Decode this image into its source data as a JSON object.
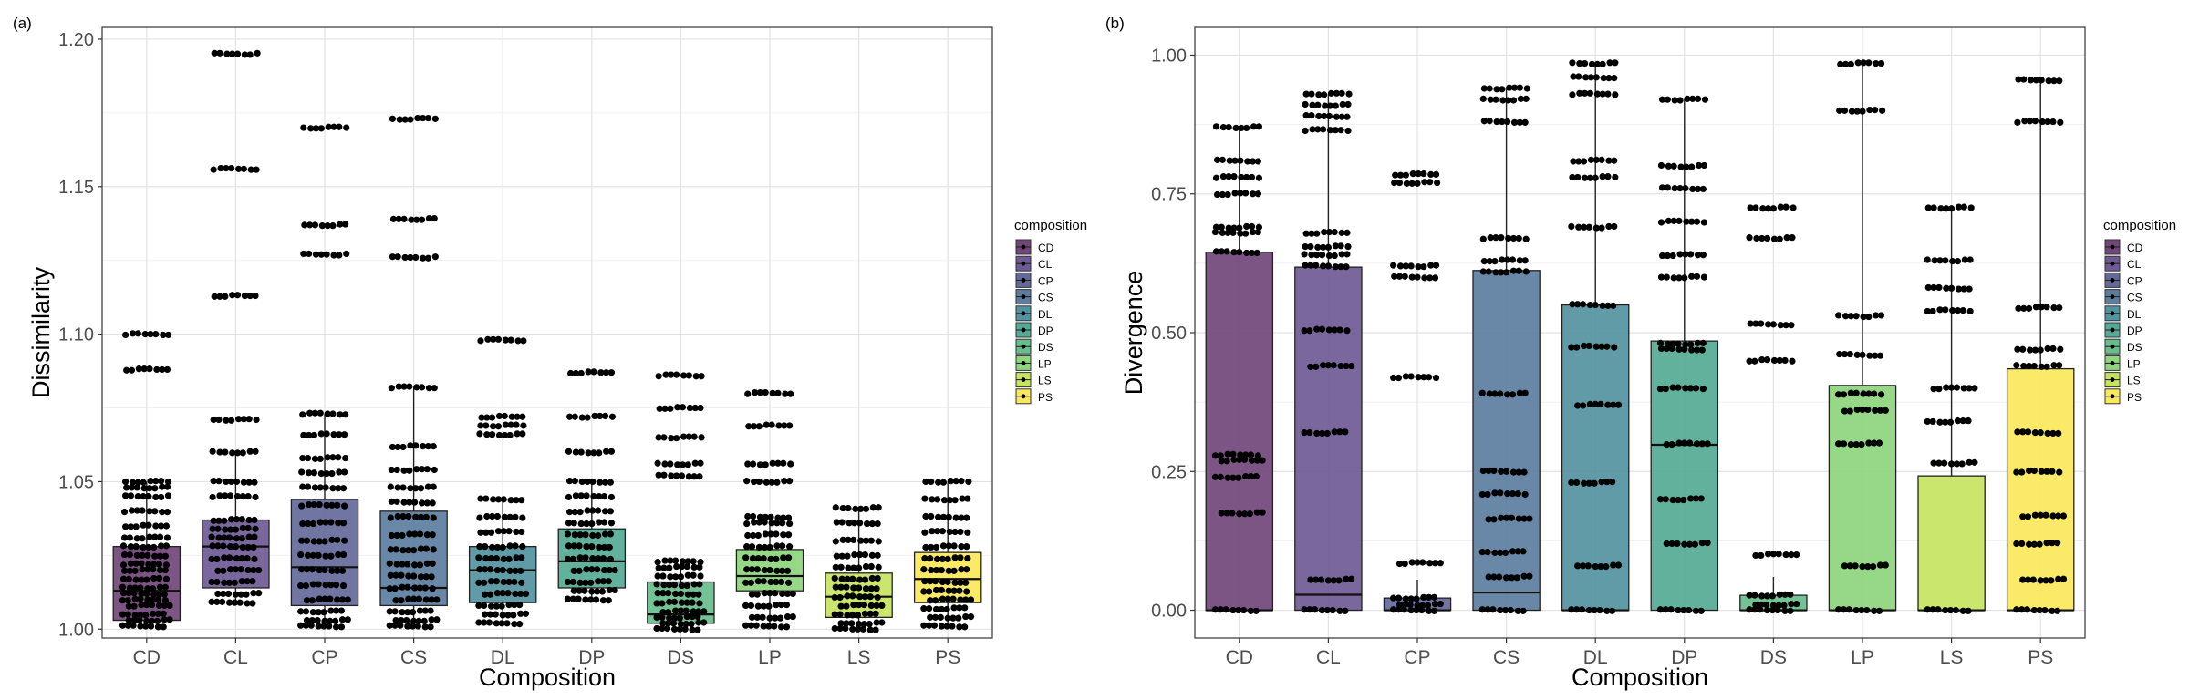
{
  "categories": [
    "CD",
    "CL",
    "CP",
    "CS",
    "DL",
    "DP",
    "DS",
    "LP",
    "LS",
    "PS"
  ],
  "colors": {
    "CD": "#71467A",
    "CL": "#6E5A95",
    "CP": "#65699A",
    "CS": "#5C7D9E",
    "DL": "#52939F",
    "DP": "#54AA94",
    "DS": "#67BE8C",
    "LP": "#8DD57E",
    "LS": "#C5E45F",
    "PS": "#FBE85A"
  },
  "chart_data": [
    {
      "panel_label": "(a)",
      "type": "boxplot",
      "xlabel": "Composition",
      "ylabel": "Dissimilarity",
      "ylim": [
        0.997,
        1.204
      ],
      "y_ticks": [
        1.0,
        1.05,
        1.1,
        1.15,
        1.2
      ],
      "y_tick_labels": [
        "1.00",
        "1.05",
        "1.10",
        "1.15",
        "1.20"
      ],
      "legend_title": "composition",
      "legend_position": "right",
      "boxes": [
        {
          "category": "CD",
          "q1": 1.003,
          "median": 1.013,
          "q3": 1.028,
          "whisker_low": 1.0,
          "whisker_high": 1.05,
          "outliers": [
            1.088,
            1.1
          ],
          "points": [
            1.001,
            1.003,
            1.005,
            1.008,
            1.01,
            1.012,
            1.014,
            1.017,
            1.02,
            1.022,
            1.025,
            1.028,
            1.031,
            1.035,
            1.04,
            1.045,
            1.048,
            1.05
          ]
        },
        {
          "category": "CL",
          "q1": 1.014,
          "median": 1.028,
          "q3": 1.037,
          "whisker_low": 1.009,
          "whisker_high": 1.06,
          "outliers": [
            1.071,
            1.113,
            1.156,
            1.195
          ],
          "points": [
            1.009,
            1.012,
            1.016,
            1.02,
            1.024,
            1.028,
            1.031,
            1.034,
            1.037,
            1.045,
            1.05,
            1.06
          ]
        },
        {
          "category": "CP",
          "q1": 1.008,
          "median": 1.021,
          "q3": 1.044,
          "whisker_low": 1.0,
          "whisker_high": 1.073,
          "outliers": [
            1.127,
            1.137,
            1.17
          ],
          "points": [
            1.001,
            1.003,
            1.006,
            1.01,
            1.015,
            1.02,
            1.025,
            1.03,
            1.036,
            1.042,
            1.048,
            1.053,
            1.058,
            1.066,
            1.073
          ]
        },
        {
          "category": "CS",
          "q1": 1.008,
          "median": 1.014,
          "q3": 1.04,
          "whisker_low": 1.0,
          "whisker_high": 1.082,
          "outliers": [
            1.126,
            1.139,
            1.173
          ],
          "points": [
            1.001,
            1.003,
            1.006,
            1.01,
            1.014,
            1.018,
            1.022,
            1.027,
            1.032,
            1.038,
            1.043,
            1.048,
            1.054,
            1.062,
            1.082
          ]
        },
        {
          "category": "DL",
          "q1": 1.009,
          "median": 1.02,
          "q3": 1.028,
          "whisker_low": 1.002,
          "whisker_high": 1.044,
          "outliers": [
            1.066,
            1.069,
            1.072,
            1.098
          ],
          "points": [
            1.002,
            1.005,
            1.008,
            1.012,
            1.016,
            1.02,
            1.024,
            1.028,
            1.033,
            1.038,
            1.044
          ]
        },
        {
          "category": "DP",
          "q1": 1.014,
          "median": 1.023,
          "q3": 1.034,
          "whisker_low": 1.01,
          "whisker_high": 1.05,
          "outliers": [
            1.06,
            1.072,
            1.087
          ],
          "points": [
            1.01,
            1.013,
            1.016,
            1.02,
            1.024,
            1.028,
            1.032,
            1.036,
            1.04,
            1.045,
            1.05
          ]
        },
        {
          "category": "DS",
          "q1": 1.002,
          "median": 1.005,
          "q3": 1.016,
          "whisker_low": 1.0,
          "whisker_high": 1.023,
          "outliers": [
            1.052,
            1.056,
            1.065,
            1.075,
            1.086
          ],
          "points": [
            1.0,
            1.002,
            1.004,
            1.006,
            1.009,
            1.012,
            1.015,
            1.018,
            1.021,
            1.023
          ]
        },
        {
          "category": "LP",
          "q1": 1.013,
          "median": 1.018,
          "q3": 1.027,
          "whisker_low": 1.001,
          "whisker_high": 1.038,
          "outliers": [
            1.05,
            1.056,
            1.069,
            1.08
          ],
          "points": [
            1.001,
            1.004,
            1.008,
            1.012,
            1.016,
            1.02,
            1.024,
            1.028,
            1.032,
            1.036,
            1.038
          ]
        },
        {
          "category": "LS",
          "q1": 1.004,
          "median": 1.011,
          "q3": 1.019,
          "whisker_low": 1.0,
          "whisker_high": 1.041,
          "outliers": [],
          "points": [
            1.0,
            1.002,
            1.005,
            1.008,
            1.011,
            1.014,
            1.017,
            1.021,
            1.025,
            1.03,
            1.036,
            1.041
          ]
        },
        {
          "category": "PS",
          "q1": 1.009,
          "median": 1.017,
          "q3": 1.026,
          "whisker_low": 1.001,
          "whisker_high": 1.05,
          "outliers": [],
          "points": [
            1.001,
            1.004,
            1.007,
            1.01,
            1.013,
            1.016,
            1.02,
            1.024,
            1.028,
            1.033,
            1.038,
            1.044,
            1.05
          ]
        }
      ]
    },
    {
      "panel_label": "(b)",
      "type": "boxplot",
      "xlabel": "Composition",
      "ylabel": "Divergence",
      "ylim": [
        -0.05,
        1.05
      ],
      "y_ticks": [
        0.0,
        0.25,
        0.5,
        0.75,
        1.0
      ],
      "y_tick_labels": [
        "0.00",
        "0.25",
        "0.50",
        "0.75",
        "1.00"
      ],
      "legend_title": "composition",
      "legend_position": "right",
      "boxes": [
        {
          "category": "CD",
          "q1": 0.0,
          "median": 0.0,
          "q3": 0.645,
          "whisker_low": 0.0,
          "whisker_high": 0.87,
          "outliers": [],
          "points": [
            0.0,
            0.175,
            0.24,
            0.27,
            0.28,
            0.645,
            0.68,
            0.69,
            0.75,
            0.78,
            0.81,
            0.87
          ]
        },
        {
          "category": "CL",
          "q1": 0.0,
          "median": 0.028,
          "q3": 0.618,
          "whisker_low": 0.0,
          "whisker_high": 0.93,
          "outliers": [],
          "points": [
            0.0,
            0.055,
            0.32,
            0.44,
            0.505,
            0.62,
            0.64,
            0.655,
            0.68,
            0.865,
            0.89,
            0.91,
            0.93
          ]
        },
        {
          "category": "CP",
          "q1": 0.0,
          "median": 0.0,
          "q3": 0.022,
          "whisker_low": 0.0,
          "whisker_high": 0.055,
          "outliers": [
            0.085,
            0.42,
            0.6,
            0.62,
            0.77,
            0.785
          ],
          "points": [
            0.0,
            0.01,
            0.022
          ]
        },
        {
          "category": "CS",
          "q1": 0.0,
          "median": 0.032,
          "q3": 0.612,
          "whisker_low": 0.0,
          "whisker_high": 0.94,
          "outliers": [],
          "points": [
            0.0,
            0.06,
            0.105,
            0.165,
            0.21,
            0.25,
            0.39,
            0.61,
            0.63,
            0.67,
            0.88,
            0.92,
            0.94
          ]
        },
        {
          "category": "DL",
          "q1": 0.0,
          "median": 0.0,
          "q3": 0.55,
          "whisker_low": 0.0,
          "whisker_high": 0.985,
          "outliers": [],
          "points": [
            0.0,
            0.08,
            0.23,
            0.37,
            0.475,
            0.55,
            0.69,
            0.78,
            0.81,
            0.93,
            0.96,
            0.985
          ]
        },
        {
          "category": "DP",
          "q1": 0.0,
          "median": 0.298,
          "q3": 0.485,
          "whisker_low": 0.0,
          "whisker_high": 0.92,
          "outliers": [],
          "points": [
            0.0,
            0.12,
            0.2,
            0.3,
            0.4,
            0.47,
            0.48,
            0.6,
            0.64,
            0.7,
            0.76,
            0.8,
            0.92
          ]
        },
        {
          "category": "DS",
          "q1": 0.0,
          "median": 0.0,
          "q3": 0.027,
          "whisker_low": 0.0,
          "whisker_high": 0.06,
          "outliers": [
            0.1,
            0.45,
            0.515,
            0.67,
            0.725
          ],
          "points": [
            0.0,
            0.01,
            0.027
          ]
        },
        {
          "category": "LP",
          "q1": 0.0,
          "median": 0.0,
          "q3": 0.405,
          "whisker_low": 0.0,
          "whisker_high": 0.985,
          "outliers": [],
          "points": [
            0.0,
            0.08,
            0.3,
            0.36,
            0.39,
            0.46,
            0.53,
            0.9,
            0.985
          ]
        },
        {
          "category": "LS",
          "q1": 0.0,
          "median": 0.0,
          "q3": 0.242,
          "whisker_low": 0.0,
          "whisker_high": 0.725,
          "outliers": [],
          "points": [
            0.0,
            0.265,
            0.34,
            0.4,
            0.54,
            0.58,
            0.63,
            0.725
          ]
        },
        {
          "category": "PS",
          "q1": 0.0,
          "median": 0.0,
          "q3": 0.435,
          "whisker_low": 0.0,
          "whisker_high": 0.955,
          "outliers": [],
          "points": [
            0.0,
            0.055,
            0.12,
            0.17,
            0.25,
            0.32,
            0.44,
            0.47,
            0.545,
            0.88,
            0.955
          ]
        }
      ]
    }
  ]
}
